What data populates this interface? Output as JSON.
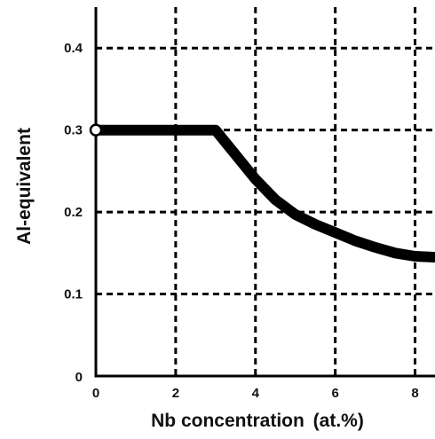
{
  "chart_data": {
    "type": "line",
    "xlabel": "Nb concentration",
    "xlabel_unit": "(at.%)",
    "ylabel": "Al-equivalent",
    "xlim": [
      0,
      8.5
    ],
    "ylim": [
      0,
      0.45
    ],
    "x_ticks": [
      0,
      2,
      4,
      6,
      8
    ],
    "x_tick_labels": [
      "0",
      "2",
      "4",
      "6",
      "8"
    ],
    "y_ticks": [
      0,
      0.1,
      0.2,
      0.3,
      0.4
    ],
    "y_tick_labels": [
      "0",
      "0.1",
      "0.2",
      "0.3",
      "0.4"
    ],
    "grid": true,
    "grid_style": "dashed",
    "series": [
      {
        "color": "#000000",
        "x": [
          0,
          1,
          2,
          2.5,
          3,
          3.5,
          4,
          4.5,
          5,
          5.5,
          6,
          6.5,
          7,
          7.5,
          8,
          8.5
        ],
        "y": [
          0.3,
          0.3,
          0.3,
          0.3,
          0.3,
          0.27,
          0.24,
          0.215,
          0.197,
          0.185,
          0.175,
          0.165,
          0.157,
          0.15,
          0.146,
          0.145
        ]
      }
    ],
    "start_marker": {
      "x": 0,
      "y": 0.3,
      "shape": "open-circle"
    }
  }
}
